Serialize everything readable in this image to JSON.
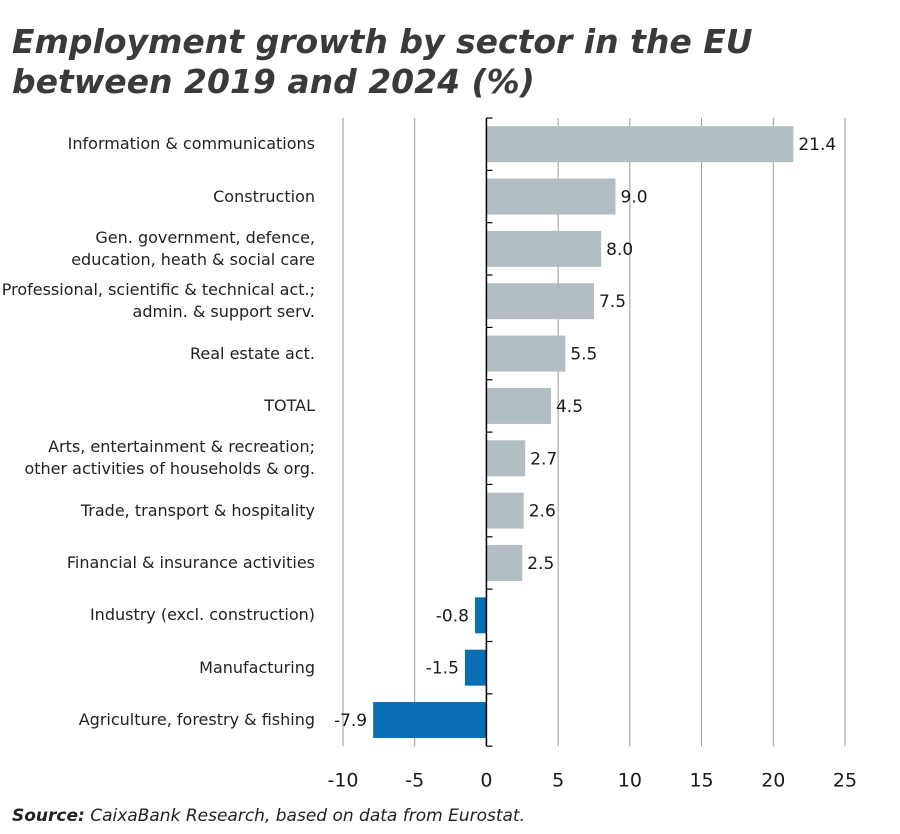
{
  "chart_data": {
    "type": "hbar",
    "title": "Employment growth by sector in the EU between 2019 and 2024 (%)",
    "categories": [
      "Information & communications",
      "Construction",
      "Gen. government, defence,\neducation, heath & social care",
      "Professional, scientific & technical act.;\nadmin. & support serv.",
      "Real estate act.",
      "TOTAL",
      "Arts, entertainment & recreation;\nother activities of households & org.",
      "Trade, transport & hospitality",
      "Financial & insurance activities",
      "Industry (excl. construction)",
      "Manufacturing",
      "Agriculture, forestry & fishing"
    ],
    "values": [
      21.4,
      9.0,
      8.0,
      7.5,
      5.5,
      4.5,
      2.7,
      2.6,
      2.5,
      -0.8,
      -1.5,
      -7.9
    ],
    "value_labels": [
      "21.4",
      "9.0",
      "8.0",
      "7.5",
      "5.5",
      "4.5",
      "2.7",
      "2.6",
      "2.5",
      "-0.8",
      "-1.5",
      "-7.9"
    ],
    "colors": [
      "#b3bec3",
      "#b3bec3",
      "#b3bec3",
      "#b3bec3",
      "#b3bec3",
      "#b3bec3",
      "#b3bec3",
      "#b3bec3",
      "#b3bec3",
      "#0a6eb4",
      "#0a6eb4",
      "#0a6eb4"
    ],
    "xlim": [
      -10,
      25
    ],
    "xticks": [
      -10,
      -5,
      0,
      5,
      10,
      15,
      20,
      25
    ],
    "grid": true,
    "source_label": "Source:",
    "source_text": "CaixaBank Research, based on data from Eurostat."
  }
}
